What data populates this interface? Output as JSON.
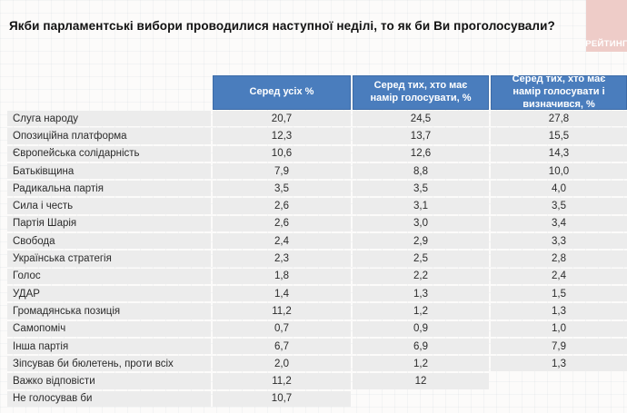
{
  "title": "Якби парламентські вибори проводилися наступної неділі, то як би Ви проголосували?",
  "logo": {
    "text": "РЕЙТИНГ"
  },
  "colors": {
    "header_bg": "#4a7dbd",
    "header_border": "#3c6ba7",
    "row_bg": "#ececec",
    "logo_bg": "#eeccc8",
    "title_text": "#111111"
  },
  "chart_data": {
    "type": "table",
    "title": "Якби парламентські вибори проводилися наступної неділі, то як би Ви проголосували?",
    "columns": [
      "Серед усіх %",
      "Серед тих, хто має намір голосувати, %",
      "Серед тих, хто має намір голосувати і визначився, %"
    ],
    "rows": [
      {
        "label": "Слуга народу",
        "values": [
          "20,7",
          "24,5",
          "27,8"
        ]
      },
      {
        "label": "Опозиційна платформа",
        "values": [
          "12,3",
          "13,7",
          "15,5"
        ]
      },
      {
        "label": "Європейська солідарність",
        "values": [
          "10,6",
          "12,6",
          "14,3"
        ]
      },
      {
        "label": "Батьківщина",
        "values": [
          "7,9",
          "8,8",
          "10,0"
        ]
      },
      {
        "label": "Радикальна партія",
        "values": [
          "3,5",
          "3,5",
          "4,0"
        ]
      },
      {
        "label": "Сила і честь",
        "values": [
          "2,6",
          "3,1",
          "3,5"
        ]
      },
      {
        "label": "Партія Шарія",
        "values": [
          "2,6",
          "3,0",
          "3,4"
        ]
      },
      {
        "label": "Свобода",
        "values": [
          "2,4",
          "2,9",
          "3,3"
        ]
      },
      {
        "label": "Українська стратегія",
        "values": [
          "2,3",
          "2,5",
          "2,8"
        ]
      },
      {
        "label": "Голос",
        "values": [
          "1,8",
          "2,2",
          "2,4"
        ]
      },
      {
        "label": "УДАР",
        "values": [
          "1,4",
          "1,3",
          "1,5"
        ]
      },
      {
        "label": "Громадянська позиція",
        "values": [
          "11,2",
          "1,2",
          "1,3"
        ]
      },
      {
        "label": "Самопоміч",
        "values": [
          "0,7",
          "0,9",
          "1,0"
        ]
      },
      {
        "label": "Інша партія",
        "values": [
          "6,7",
          "6,9",
          "7,9"
        ]
      },
      {
        "label": "Зіпсував би бюлетень, проти всіх",
        "values": [
          "2,0",
          "1,2",
          "1,3"
        ]
      },
      {
        "label": "Важко відповісти",
        "values": [
          "11,2",
          "12",
          ""
        ]
      },
      {
        "label": "Не голосував би",
        "values": [
          "10,7",
          "",
          ""
        ]
      }
    ]
  }
}
